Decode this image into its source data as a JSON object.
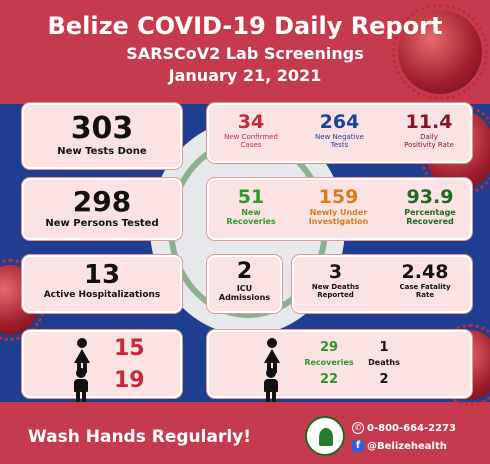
{
  "header": {
    "title": "Belize COVID-19 Daily Report",
    "subtitle": "SARSCoV2 Lab Screenings",
    "date": "January 21, 2021"
  },
  "tests": {
    "value": "303",
    "label": "New Tests Done"
  },
  "persons": {
    "value": "298",
    "label": "New Persons Tested"
  },
  "hosp": {
    "value": "13",
    "label": "Active Hospitalizations"
  },
  "row1": {
    "confirmed": {
      "value": "34",
      "label1": "New Confirmed",
      "label2": "Cases"
    },
    "negative": {
      "value": "264",
      "label1": "New Negative",
      "label2": "Tests"
    },
    "positivity": {
      "value": "11.4",
      "label1": "Daily",
      "label2": "Positivity Rate"
    }
  },
  "row2": {
    "recoveries": {
      "value": "51",
      "label1": "New",
      "label2": "Recoveries"
    },
    "investigation": {
      "value": "159",
      "label1": "Newly Under",
      "label2": "Investigation"
    },
    "pct_recovered": {
      "value": "93.9",
      "label1": "Percentage",
      "label2": "Recovered"
    }
  },
  "icu": {
    "value": "2",
    "label1": "ICU",
    "label2": "Admissions"
  },
  "deaths": {
    "value": "3",
    "label1": "New Deaths",
    "label2": "Reported"
  },
  "cfr": {
    "value": "2.48",
    "label1": "Case Fatality",
    "label2": "Rate"
  },
  "gender_cases": {
    "female": "15",
    "male": "19"
  },
  "gender_outcomes": {
    "recoveries_label": "Recoveries",
    "deaths_label": "Deaths",
    "female_recoveries": "29",
    "female_deaths": "1",
    "male_recoveries": "22",
    "male_deaths": "2"
  },
  "footer": {
    "slogan": "Wash Hands Regularly!",
    "phone": "0-800-664-2273",
    "handle": "@Belizehealth"
  },
  "colors": {
    "red": "#c63a4e",
    "blue": "#1f3e8f",
    "card": "#fbe3e4"
  }
}
